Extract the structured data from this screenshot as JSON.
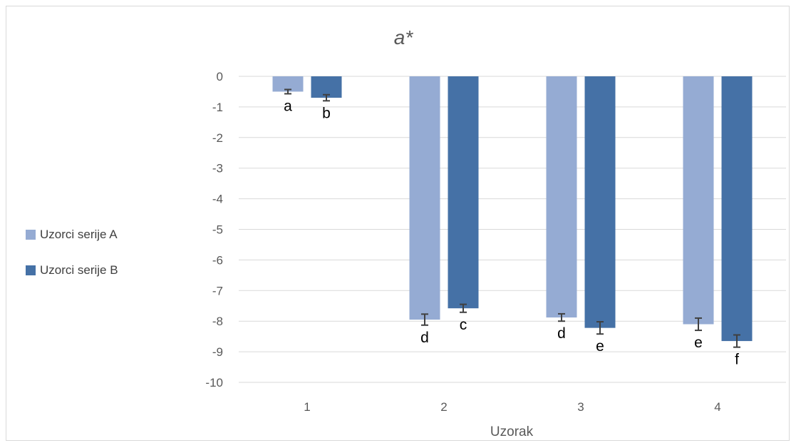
{
  "chart_data": {
    "type": "bar",
    "title": "a*",
    "xlabel": "Uzorak",
    "ylabel": "",
    "categories": [
      "1",
      "2",
      "3",
      "4"
    ],
    "ylim": [
      -10,
      0
    ],
    "yticks": [
      0,
      -1,
      -2,
      -3,
      -4,
      -5,
      -6,
      -7,
      -8,
      -9,
      -10
    ],
    "grid": true,
    "legend_position": "left",
    "series": [
      {
        "name": "Uzorci serije A",
        "color": "#95abd3",
        "values": [
          -0.5,
          -7.95,
          -7.88,
          -8.1
        ],
        "errors": [
          0.07,
          0.18,
          0.12,
          0.2
        ],
        "labels": [
          "a",
          "d",
          "d",
          "e"
        ]
      },
      {
        "name": "Uzorci serije B",
        "color": "#4571a6",
        "values": [
          -0.7,
          -7.58,
          -8.22,
          -8.65
        ],
        "errors": [
          0.1,
          0.13,
          0.2,
          0.2
        ],
        "labels": [
          "b",
          "c",
          "e",
          "f"
        ]
      }
    ]
  }
}
